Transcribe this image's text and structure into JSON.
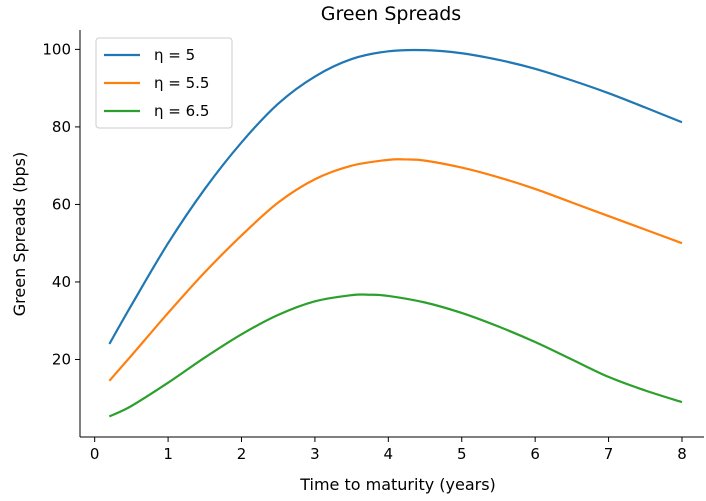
{
  "chart_data": {
    "type": "line",
    "title": "Green Spreads",
    "xlabel": "Time to maturity (years)",
    "ylabel": "Green Spreads (bps)",
    "xlim": [
      -0.2,
      8.3
    ],
    "ylim": [
      0,
      105
    ],
    "xticks": [
      0,
      1,
      2,
      3,
      4,
      5,
      6,
      7,
      8
    ],
    "yticks": [
      20,
      40,
      60,
      80,
      100
    ],
    "grid": false,
    "legend_position": "top-left",
    "series": [
      {
        "name": "η = 5",
        "color": "#1f77b4",
        "x": [
          0.2,
          0.5,
          1.0,
          1.5,
          2.0,
          2.5,
          3.0,
          3.5,
          4.0,
          4.5,
          5.0,
          5.5,
          6.0,
          6.5,
          7.0,
          7.5,
          8.0
        ],
        "y": [
          24,
          34,
          50,
          64,
          76,
          86,
          93,
          97.5,
          99.5,
          99.8,
          99,
          97.3,
          95,
          92,
          88.7,
          85,
          81.2
        ]
      },
      {
        "name": "η = 5.5",
        "color": "#ff7f0e",
        "x": [
          0.2,
          0.5,
          1.0,
          1.5,
          2.0,
          2.5,
          3.0,
          3.5,
          4.0,
          4.25,
          4.5,
          5.0,
          5.5,
          6.0,
          6.5,
          7.0,
          7.5,
          8.0
        ],
        "y": [
          14.5,
          21,
          32,
          42.5,
          52,
          60.5,
          66.5,
          70,
          71.5,
          71.6,
          71.3,
          69.5,
          67,
          64,
          60.5,
          57,
          53.5,
          50
        ]
      },
      {
        "name": "η = 6.5",
        "color": "#2ca02c",
        "x": [
          0.2,
          0.5,
          1.0,
          1.5,
          2.0,
          2.5,
          3.0,
          3.5,
          3.75,
          4.0,
          4.5,
          5.0,
          5.5,
          6.0,
          6.5,
          7.0,
          7.5,
          8.0
        ],
        "y": [
          5.3,
          8,
          14,
          20.5,
          26.5,
          31.5,
          35,
          36.6,
          36.7,
          36.4,
          34.7,
          32,
          28.5,
          24.5,
          20,
          15.5,
          12,
          9
        ]
      }
    ]
  }
}
